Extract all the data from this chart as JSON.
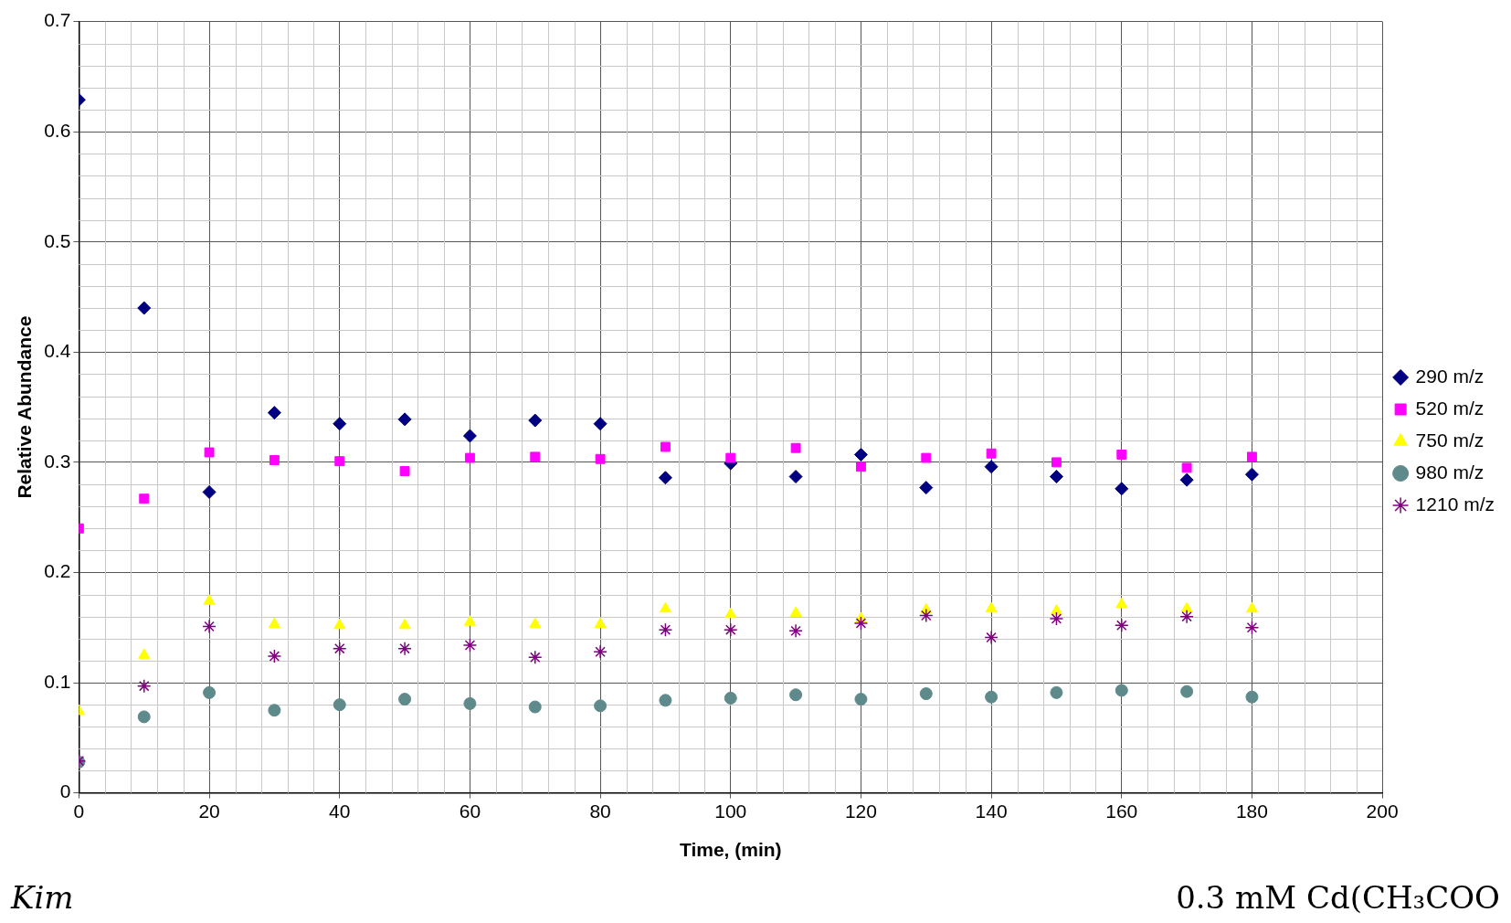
{
  "chart_data": {
    "type": "scatter",
    "xlabel": "Time, (min)",
    "ylabel": "Relative Abundance",
    "x": [
      0,
      10,
      20,
      30,
      40,
      50,
      60,
      70,
      80,
      90,
      100,
      110,
      120,
      130,
      140,
      150,
      160,
      170,
      180
    ],
    "series": [
      {
        "name": "290 m/z",
        "color": "#000080",
        "marker": "diamond",
        "values": [
          0.629,
          0.44,
          0.273,
          0.345,
          0.335,
          0.339,
          0.324,
          0.338,
          0.335,
          0.286,
          0.299,
          0.287,
          0.307,
          0.277,
          0.296,
          0.287,
          0.276,
          0.284,
          0.289
        ]
      },
      {
        "name": "520 m/z",
        "color": "#ff00ff",
        "marker": "square",
        "values": [
          0.24,
          0.267,
          0.309,
          0.302,
          0.301,
          0.292,
          0.304,
          0.305,
          0.303,
          0.314,
          0.304,
          0.313,
          0.296,
          0.304,
          0.308,
          0.3,
          0.307,
          0.295,
          0.305
        ]
      },
      {
        "name": "750 m/z",
        "color": "#ffff00",
        "marker": "triangle",
        "values": [
          0.074,
          0.125,
          0.174,
          0.153,
          0.152,
          0.152,
          0.155,
          0.153,
          0.153,
          0.167,
          0.162,
          0.163,
          0.158,
          0.166,
          0.167,
          0.165,
          0.171,
          0.167,
          0.167
        ]
      },
      {
        "name": "980 m/z",
        "color": "#5f8a8b",
        "marker": "circle",
        "values": [
          0.028,
          0.069,
          0.091,
          0.075,
          0.08,
          0.085,
          0.081,
          0.078,
          0.079,
          0.084,
          0.086,
          0.089,
          0.085,
          0.09,
          0.087,
          0.091,
          0.093,
          0.092,
          0.087
        ]
      },
      {
        "name": "1210 m/z",
        "color": "#800080",
        "marker": "cross",
        "values": [
          0.029,
          0.097,
          0.151,
          0.124,
          0.131,
          0.131,
          0.134,
          0.123,
          0.128,
          0.148,
          0.148,
          0.147,
          0.154,
          0.161,
          0.141,
          0.158,
          0.152,
          0.16,
          0.15
        ]
      }
    ],
    "xlim": [
      0,
      200
    ],
    "xticks": [
      0,
      20,
      40,
      60,
      80,
      100,
      120,
      140,
      160,
      180,
      200
    ],
    "ylim": [
      0,
      0.7
    ],
    "yticks": [
      0,
      0.1,
      0.2,
      0.3,
      0.4,
      0.5,
      0.6,
      0.7
    ],
    "grid": true,
    "legend": "right",
    "annotations": [
      "Kim",
      "0.3 mM Cd(CH₃COO"
    ]
  }
}
